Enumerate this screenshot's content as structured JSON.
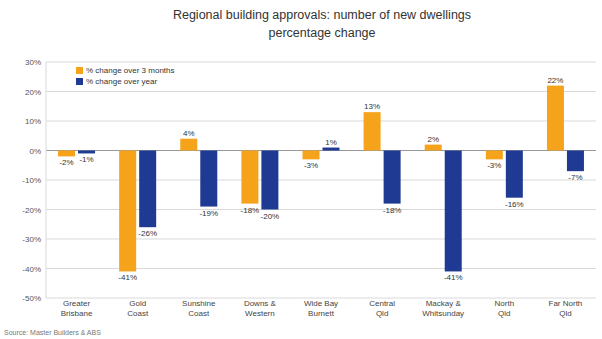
{
  "chart_data": {
    "type": "bar",
    "title": "Regional building approvals: number of new dwellings percentage change",
    "source": "Source: Master Builders & ABS",
    "categories": [
      "Greater Brisbane",
      "Gold Coast",
      "Sunshine Coast",
      "Downs & Western",
      "Wide Bay Burnett",
      "Central Qld",
      "Mackay & Whitsunday",
      "North Qld",
      "Far North Qld"
    ],
    "series": [
      {
        "name": "% change over 3 months",
        "color": "#f5a31a",
        "values": [
          -2,
          -41,
          4,
          -18,
          -3,
          13,
          2,
          -3,
          22
        ],
        "value_labels": [
          "-2%",
          "-41%",
          "4%",
          "-18%",
          "-3%",
          "13%",
          "2%",
          "-3%",
          "22%"
        ]
      },
      {
        "name": "% change over year",
        "color": "#1f3a93",
        "values": [
          -1,
          -26,
          -19,
          -20,
          1,
          -18,
          -41,
          -16,
          -7
        ],
        "value_labels": [
          "-1%",
          "-26%",
          "-19%",
          "-20%",
          "1%",
          "-18%",
          "-41%",
          "-16%",
          "-7%"
        ]
      }
    ],
    "ylim": [
      -50,
      30
    ],
    "yticks": [
      {
        "value": -50,
        "label": "-50%"
      },
      {
        "value": -40,
        "label": "-40%"
      },
      {
        "value": -30,
        "label": "-30%"
      },
      {
        "value": -20,
        "label": "-20%"
      },
      {
        "value": -10,
        "label": "-10%"
      },
      {
        "value": 0,
        "label": "0%"
      },
      {
        "value": 10,
        "label": "10%"
      },
      {
        "value": 20,
        "label": "20%"
      },
      {
        "value": 30,
        "label": "30%"
      }
    ],
    "grid": true,
    "data_labels": true,
    "legend": "top-left"
  }
}
